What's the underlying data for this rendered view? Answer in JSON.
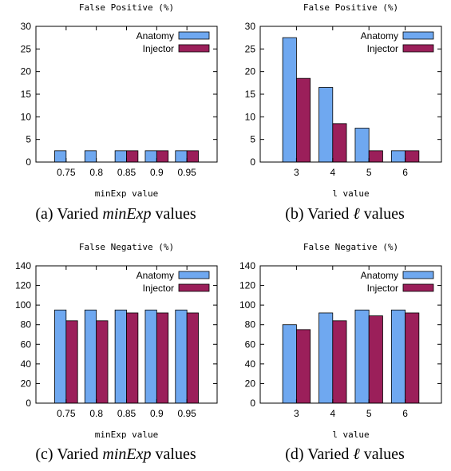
{
  "colors": {
    "anatomy": "#6fa8f0",
    "injector": "#9b1f5a",
    "axis": "#000000"
  },
  "chart_data": [
    {
      "type": "bar",
      "title": "False Positive (%)",
      "xlabel": "minExp value",
      "ylabel": "",
      "ylim": [
        0,
        30
      ],
      "yticks": [
        "0",
        "5",
        "10",
        "15",
        "20",
        "25",
        "30"
      ],
      "categories": [
        "0.75",
        "0.8",
        "0.85",
        "0.9",
        "0.95"
      ],
      "series": [
        {
          "name": "Anatomy",
          "values": [
            2.5,
            2.5,
            2.5,
            2.5,
            2.5
          ]
        },
        {
          "name": "Injector",
          "values": [
            0,
            0,
            2.5,
            2.5,
            2.5
          ]
        }
      ],
      "legend": "top-right",
      "grid": false,
      "caption_prefix": "(a) Varied ",
      "caption_italic": "minExp",
      "caption_suffix": " values"
    },
    {
      "type": "bar",
      "title": "False Positive (%)",
      "xlabel": "l value",
      "ylabel": "",
      "ylim": [
        0,
        30
      ],
      "yticks": [
        "0",
        "5",
        "10",
        "15",
        "20",
        "25",
        "30"
      ],
      "categories": [
        "3",
        "4",
        "5",
        "6"
      ],
      "series": [
        {
          "name": "Anatomy",
          "values": [
            27.5,
            16.5,
            7.5,
            2.5
          ]
        },
        {
          "name": "Injector",
          "values": [
            18.5,
            8.5,
            2.5,
            2.5
          ]
        }
      ],
      "legend": "top-right",
      "grid": false,
      "caption_prefix": "(b) Varied ",
      "caption_italic": "ℓ",
      "caption_suffix": " values"
    },
    {
      "type": "bar",
      "title": "False Negative (%)",
      "xlabel": "minExp value",
      "ylabel": "",
      "ylim": [
        0,
        140
      ],
      "yticks": [
        "0",
        "20",
        "40",
        "60",
        "80",
        "100",
        "120",
        "140"
      ],
      "categories": [
        "0.75",
        "0.8",
        "0.85",
        "0.9",
        "0.95"
      ],
      "series": [
        {
          "name": "Anatomy",
          "values": [
            95,
            95,
            95,
            95,
            95
          ]
        },
        {
          "name": "Injector",
          "values": [
            84,
            84,
            92,
            92,
            92
          ]
        }
      ],
      "legend": "top-right",
      "grid": false,
      "caption_prefix": "(c) Varied ",
      "caption_italic": "minExp",
      "caption_suffix": " values"
    },
    {
      "type": "bar",
      "title": "False Negative (%)",
      "xlabel": "l value",
      "ylabel": "",
      "ylim": [
        0,
        140
      ],
      "yticks": [
        "0",
        "20",
        "40",
        "60",
        "80",
        "100",
        "120",
        "140"
      ],
      "categories": [
        "3",
        "4",
        "5",
        "6"
      ],
      "series": [
        {
          "name": "Anatomy",
          "values": [
            80,
            92,
            95,
            95
          ]
        },
        {
          "name": "Injector",
          "values": [
            75,
            84,
            89,
            92
          ]
        }
      ],
      "legend": "top-right",
      "grid": false,
      "caption_prefix": "(d) Varied ",
      "caption_italic": "ℓ",
      "caption_suffix": " values"
    }
  ]
}
